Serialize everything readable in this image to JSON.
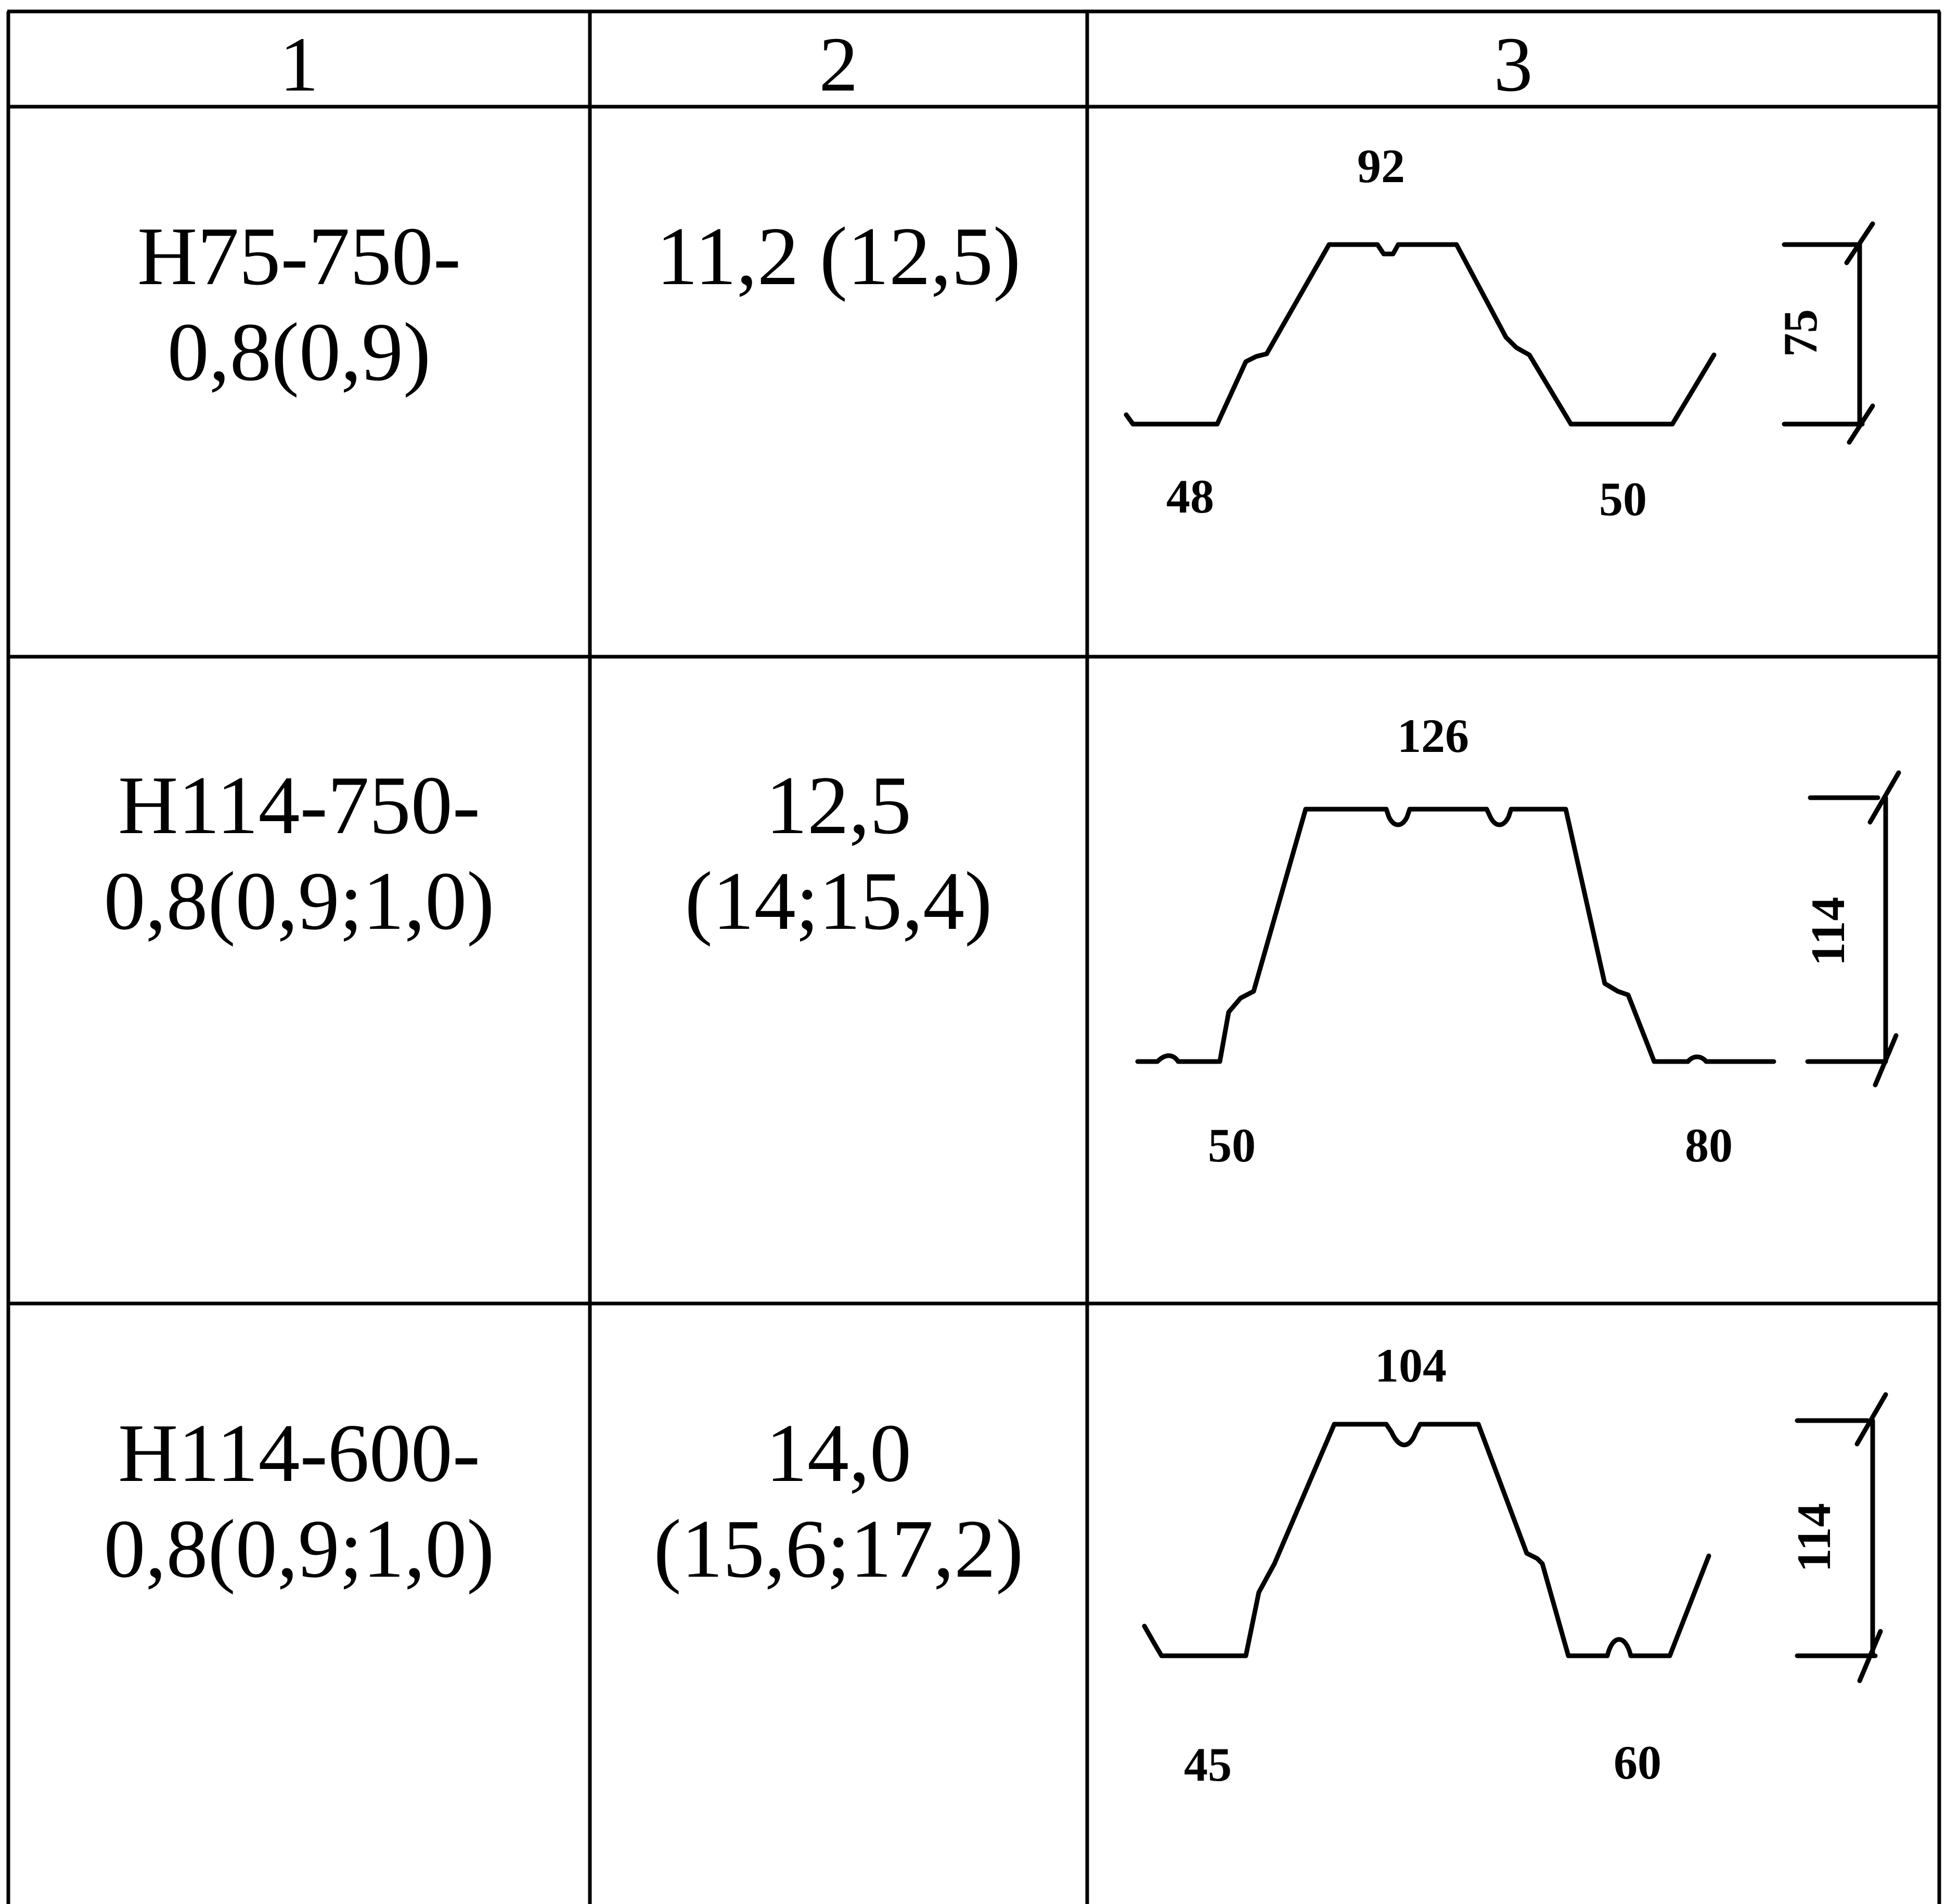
{
  "header": {
    "col1": "1",
    "col2": "2",
    "col3": "3"
  },
  "rows": [
    {
      "marking_line1": "Н75-750-",
      "marking_line2": "0,8(0,9)",
      "value_line1": "11,2 (12,5)",
      "value_line2": "",
      "profile": {
        "top_width": "92",
        "left_width": "48",
        "right_width": "50",
        "height": "75"
      }
    },
    {
      "marking_line1": "Н114-750-",
      "marking_line2": "0,8(0,9;1,0)",
      "value_line1": "12,5",
      "value_line2": "(14;15,4)",
      "profile": {
        "top_width": "126",
        "left_width": "50",
        "right_width": "80",
        "height": "114"
      }
    },
    {
      "marking_line1": "Н114-600-",
      "marking_line2": "0,8(0,9;1,0)",
      "value_line1": "14,0",
      "value_line2": "(15,6;17,2)",
      "profile": {
        "top_width": "104",
        "left_width": "45",
        "right_width": "60",
        "height": "114"
      }
    }
  ]
}
